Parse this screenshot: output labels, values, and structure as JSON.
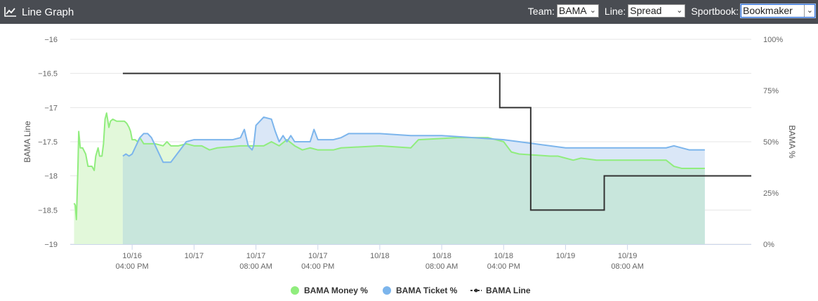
{
  "header": {
    "title": "Line Graph",
    "icon": "line-chart-icon",
    "team_label": "Team:",
    "team_value": "BAMA",
    "line_label": "Line:",
    "line_value": "Spread",
    "sportbook_label": "Sportbook:",
    "sportbook_value": "Bookmaker"
  },
  "colors": {
    "money": "#90ed7d",
    "money_fill": "#e2f8da",
    "ticket": "#7cb5ec",
    "ticket_fill": "#dae7f7",
    "overlap_fill": "#c8e6dc",
    "line": "#333333",
    "header_bg": "#494c52"
  },
  "chart_data": {
    "type": "line",
    "left_axis": {
      "title": "BAMA Line",
      "range": [
        -19,
        -16
      ],
      "ticks": [
        -16,
        -16.5,
        -17,
        -17.5,
        -18,
        -18.5,
        -19
      ],
      "tick_labels": [
        "−16",
        "−16.5",
        "−17",
        "−17.5",
        "−18",
        "−18.5",
        "−19"
      ]
    },
    "right_axis": {
      "title": "BAMA %",
      "range": [
        0,
        100
      ],
      "ticks": [
        100,
        75,
        50,
        25,
        0
      ],
      "tick_labels": [
        "100%",
        "75%",
        "50%",
        "25%",
        "0%"
      ]
    },
    "x_axis": {
      "range": [
        0,
        88
      ],
      "ticks": [
        {
          "t": 8,
          "label1": "10/16",
          "label2": "04:00 PM"
        },
        {
          "t": 16,
          "label1": "10/17",
          "label2": ""
        },
        {
          "t": 24,
          "label1": "10/17",
          "label2": "08:00 AM"
        },
        {
          "t": 32,
          "label1": "10/17",
          "label2": "04:00 PM"
        },
        {
          "t": 40,
          "label1": "10/18",
          "label2": ""
        },
        {
          "t": 48,
          "label1": "10/18",
          "label2": "08:00 AM"
        },
        {
          "t": 56,
          "label1": "10/18",
          "label2": "04:00 PM"
        },
        {
          "t": 64,
          "label1": "10/19",
          "label2": ""
        },
        {
          "t": 72,
          "label1": "10/19",
          "label2": "08:00 AM"
        }
      ]
    },
    "grid": true,
    "legend_position": "bottom",
    "series": [
      {
        "name": "BAMA Money %",
        "axis": "right",
        "style": "area",
        "points": [
          [
            0.5,
            20
          ],
          [
            0.65,
            19
          ],
          [
            0.8,
            12
          ],
          [
            1.0,
            38
          ],
          [
            1.1,
            55
          ],
          [
            1.3,
            47
          ],
          [
            1.6,
            47
          ],
          [
            2.0,
            44
          ],
          [
            2.3,
            38
          ],
          [
            2.8,
            38
          ],
          [
            3.1,
            36
          ],
          [
            3.3,
            43
          ],
          [
            3.6,
            47
          ],
          [
            3.8,
            43
          ],
          [
            4.1,
            43
          ],
          [
            4.3,
            49
          ],
          [
            4.5,
            61
          ],
          [
            4.7,
            64
          ],
          [
            5.0,
            57
          ],
          [
            5.2,
            60
          ],
          [
            5.5,
            61
          ],
          [
            6.0,
            60
          ],
          [
            6.5,
            60
          ],
          [
            7.0,
            60
          ],
          [
            7.3,
            59
          ],
          [
            7.6,
            57
          ],
          [
            7.8,
            55
          ],
          [
            8.0,
            51
          ],
          [
            8.4,
            51
          ],
          [
            8.7,
            50
          ],
          [
            9.0,
            52
          ],
          [
            9.5,
            49
          ],
          [
            10,
            49
          ],
          [
            11,
            49
          ],
          [
            12,
            48
          ],
          [
            12.5,
            50
          ],
          [
            13,
            48
          ],
          [
            14,
            48
          ],
          [
            15,
            49
          ],
          [
            16,
            48
          ],
          [
            17,
            48
          ],
          [
            18,
            46
          ],
          [
            19,
            47
          ],
          [
            22,
            48
          ],
          [
            25,
            48
          ],
          [
            26,
            50
          ],
          [
            27,
            48
          ],
          [
            28,
            51
          ],
          [
            29,
            48
          ],
          [
            30,
            46
          ],
          [
            31,
            47
          ],
          [
            32,
            46
          ],
          [
            34,
            46
          ],
          [
            35,
            47
          ],
          [
            40,
            48
          ],
          [
            44,
            47
          ],
          [
            45,
            51
          ],
          [
            50,
            52
          ],
          [
            54,
            52
          ],
          [
            55,
            51
          ],
          [
            56,
            50
          ],
          [
            57,
            45
          ],
          [
            58,
            44
          ],
          [
            62,
            43
          ],
          [
            63,
            43
          ],
          [
            64,
            42
          ],
          [
            65,
            41
          ],
          [
            66,
            42
          ],
          [
            68,
            41
          ],
          [
            72,
            41
          ],
          [
            76,
            41
          ],
          [
            77,
            41
          ],
          [
            78,
            38
          ],
          [
            79,
            37
          ],
          [
            82,
            37
          ]
        ]
      },
      {
        "name": "BAMA Ticket %",
        "axis": "right",
        "style": "area",
        "points": [
          [
            6.8,
            43
          ],
          [
            7.2,
            44
          ],
          [
            7.6,
            43
          ],
          [
            8.0,
            44
          ],
          [
            8.5,
            48
          ],
          [
            9.0,
            52
          ],
          [
            9.5,
            54
          ],
          [
            10.0,
            54
          ],
          [
            10.5,
            52
          ],
          [
            11.0,
            48
          ],
          [
            11.5,
            44
          ],
          [
            12.0,
            40
          ],
          [
            12.5,
            40
          ],
          [
            13.0,
            40
          ],
          [
            14,
            45
          ],
          [
            15,
            50
          ],
          [
            16,
            51
          ],
          [
            18,
            51
          ],
          [
            20,
            51
          ],
          [
            21,
            51
          ],
          [
            22,
            52
          ],
          [
            22.5,
            56
          ],
          [
            23,
            48
          ],
          [
            23.5,
            46
          ],
          [
            23.7,
            48
          ],
          [
            24,
            58
          ],
          [
            25,
            62
          ],
          [
            26,
            61
          ],
          [
            26.5,
            55
          ],
          [
            27,
            50
          ],
          [
            27.5,
            53
          ],
          [
            28,
            50
          ],
          [
            28.5,
            53
          ],
          [
            29,
            50
          ],
          [
            30,
            50
          ],
          [
            31,
            50
          ],
          [
            31.5,
            56
          ],
          [
            32,
            51
          ],
          [
            34,
            51
          ],
          [
            35,
            52
          ],
          [
            36,
            54
          ],
          [
            40,
            54
          ],
          [
            44,
            53
          ],
          [
            48,
            53
          ],
          [
            52,
            52
          ],
          [
            56,
            51
          ],
          [
            58,
            50
          ],
          [
            60,
            49
          ],
          [
            64,
            47
          ],
          [
            68,
            47
          ],
          [
            72,
            47
          ],
          [
            76,
            47
          ],
          [
            77,
            47
          ],
          [
            78,
            48
          ],
          [
            80,
            46
          ],
          [
            82,
            46
          ]
        ]
      },
      {
        "name": "BAMA Line",
        "axis": "left",
        "style": "step",
        "points": [
          [
            6.8,
            -16.5
          ],
          [
            55.5,
            -16.5
          ],
          [
            55.5,
            -17
          ],
          [
            59.5,
            -17
          ],
          [
            59.5,
            -18.5
          ],
          [
            69,
            -18.5
          ],
          [
            69,
            -18
          ],
          [
            88,
            -18
          ]
        ]
      }
    ]
  }
}
